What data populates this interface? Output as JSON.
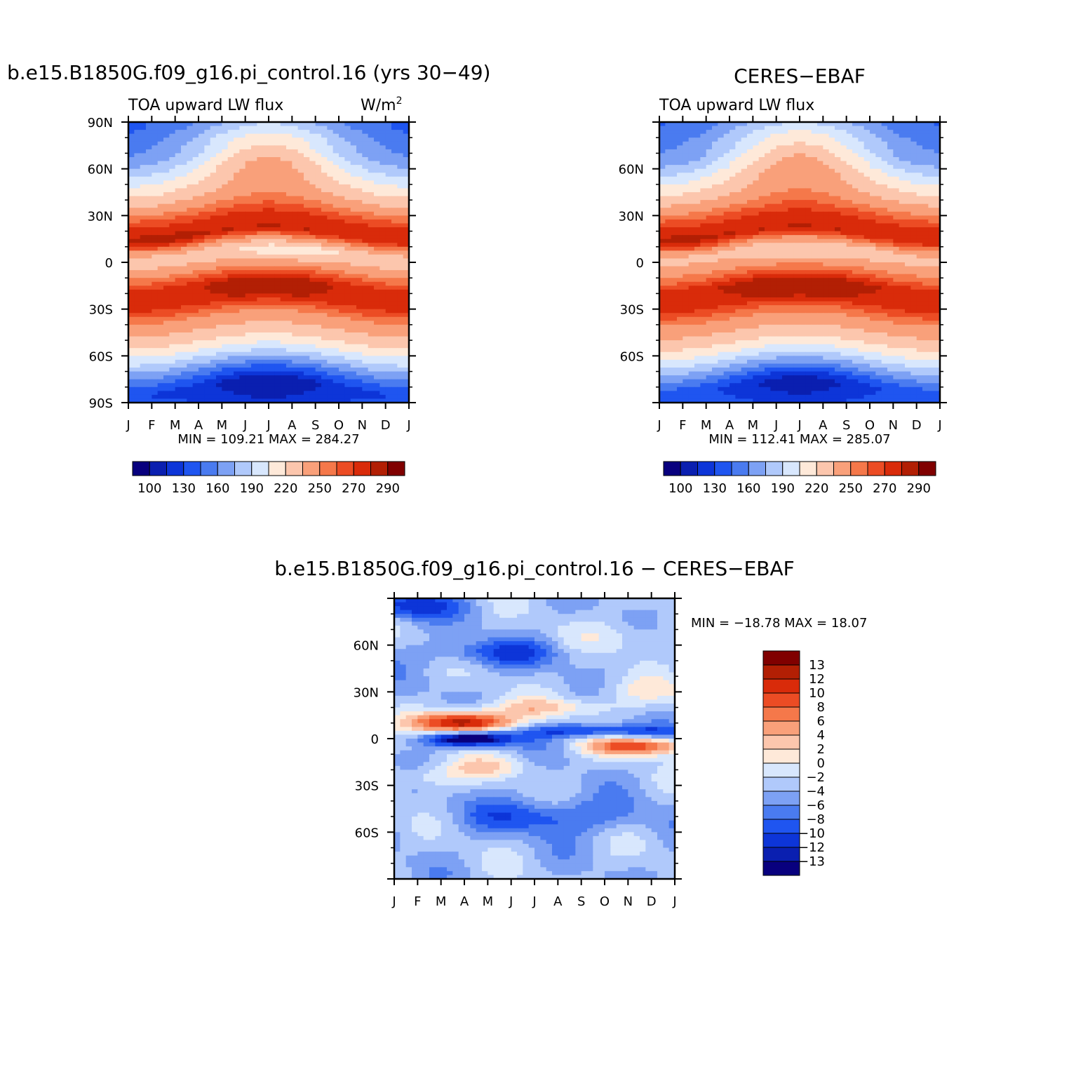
{
  "months": [
    "J",
    "F",
    "M",
    "A",
    "M",
    "J",
    "J",
    "A",
    "S",
    "O",
    "N",
    "D",
    "J"
  ],
  "chart_data": [
    {
      "type": "heatmap",
      "title": "b.e15.B1850G.f09_g16.pi_control.16 (yrs 30−49)",
      "subtitle_left": "TOA upward LW flux",
      "units": "W/m",
      "units_sup": "2",
      "ylim": [
        -90,
        90
      ],
      "y_ticks": [
        "90N",
        "60N",
        "30N",
        "0",
        "30S",
        "60S",
        "90S"
      ],
      "stats": "MIN  =  109.21  MAX  =  284.27",
      "min": 109.21,
      "max": 284.27,
      "levels": [
        100,
        115,
        130,
        145,
        160,
        175,
        190,
        205,
        220,
        235,
        250,
        260,
        270,
        280,
        290
      ],
      "colorbar_labels": [
        "100",
        "130",
        "160",
        "190",
        "220",
        "250",
        "270",
        "290"
      ],
      "anchors": [
        [
          -90,
          135
        ],
        [
          -80,
          130
        ],
        [
          -60,
          195
        ],
        [
          -50,
          222
        ],
        [
          -35,
          250
        ],
        [
          -25,
          275
        ],
        [
          -15,
          275
        ],
        [
          -8,
          255
        ],
        [
          0,
          235
        ],
        [
          6,
          225
        ],
        [
          10,
          240
        ],
        [
          18,
          280
        ],
        [
          28,
          268
        ],
        [
          40,
          235
        ],
        [
          55,
          200
        ],
        [
          70,
          160
        ],
        [
          90,
          140
        ]
      ],
      "features": [
        {
          "lat": -15,
          "month": 6,
          "dlat": 6,
          "dmon": 2.2,
          "amp": 12
        },
        {
          "lat": 12,
          "month": 1.8,
          "dlat": 5,
          "dmon": 1.2,
          "amp": 10
        },
        {
          "lat": 6,
          "month": 6.5,
          "dlat": 4,
          "dmon": 1.8,
          "amp": -15
        },
        {
          "lat": 75,
          "month": 6,
          "dlat": 18,
          "dmon": 2.5,
          "amp": 60
        },
        {
          "lat": -78,
          "month": 6,
          "dlat": 10,
          "dmon": 2.0,
          "amp": -30
        }
      ]
    },
    {
      "type": "heatmap",
      "title": "CERES−EBAF",
      "subtitle_left": "TOA upward LW flux",
      "ylim": [
        -90,
        90
      ],
      "y_ticks": [
        "",
        "60N",
        "30N",
        "0",
        "30S",
        "60S",
        ""
      ],
      "stats": "MIN  =  112.41  MAX  =  285.07",
      "min": 112.41,
      "max": 285.07,
      "levels": [
        100,
        115,
        130,
        145,
        160,
        175,
        190,
        205,
        220,
        235,
        250,
        260,
        270,
        280,
        290
      ],
      "colorbar_labels": [
        "100",
        "130",
        "160",
        "190",
        "220",
        "250",
        "270",
        "290"
      ],
      "anchors": [
        [
          -90,
          140
        ],
        [
          -80,
          135
        ],
        [
          -60,
          200
        ],
        [
          -50,
          225
        ],
        [
          -35,
          252
        ],
        [
          -25,
          276
        ],
        [
          -15,
          276
        ],
        [
          -8,
          256
        ],
        [
          0,
          240
        ],
        [
          6,
          228
        ],
        [
          10,
          242
        ],
        [
          18,
          280
        ],
        [
          28,
          268
        ],
        [
          40,
          237
        ],
        [
          55,
          202
        ],
        [
          70,
          162
        ],
        [
          90,
          142
        ]
      ],
      "features": [
        {
          "lat": -15,
          "month": 6,
          "dlat": 6,
          "dmon": 2.4,
          "amp": 12
        },
        {
          "lat": 12,
          "month": 1.5,
          "dlat": 5,
          "dmon": 1.0,
          "amp": 8
        },
        {
          "lat": 6,
          "month": 6.5,
          "dlat": 4,
          "dmon": 2.0,
          "amp": -12
        },
        {
          "lat": 75,
          "month": 6,
          "dlat": 18,
          "dmon": 2.5,
          "amp": 60
        },
        {
          "lat": -78,
          "month": 6,
          "dlat": 10,
          "dmon": 2.0,
          "amp": -30
        }
      ]
    },
    {
      "type": "heatmap",
      "title": "b.e15.B1850G.f09_g16.pi_control.16  −  CERES−EBAF",
      "ylim": [
        -90,
        90
      ],
      "y_ticks": [
        "",
        "60N",
        "30N",
        "0",
        "30S",
        "60S",
        ""
      ],
      "stats": "MIN  =  −18.78  MAX  =    18.07",
      "min": -18.78,
      "max": 18.07,
      "levels": [
        -13,
        -12,
        -10,
        -8,
        -6,
        -4,
        -2,
        0,
        2,
        4,
        6,
        8,
        10,
        12,
        13
      ],
      "colorbar_labels": [
        "13",
        "12",
        "10",
        "8",
        "6",
        "4",
        "2",
        "0",
        "−2",
        "−4",
        "−6",
        "−8",
        "−10",
        "−12",
        "−13"
      ],
      "base": -3.5,
      "features": [
        {
          "lat": 10,
          "month": 3,
          "dlat": 5,
          "dmon": 1.4,
          "amp": 19
        },
        {
          "lat": 0,
          "month": 3.2,
          "dlat": 3.5,
          "dmon": 1.4,
          "amp": -15
        },
        {
          "lat": 5,
          "month": 8.5,
          "dlat": 3,
          "dmon": 2.5,
          "amp": -8
        },
        {
          "lat": -5,
          "month": 10.5,
          "dlat": 4,
          "dmon": 1.5,
          "amp": 13
        },
        {
          "lat": 20,
          "month": 6.5,
          "dlat": 4,
          "dmon": 2.0,
          "amp": 5
        },
        {
          "lat": -18,
          "month": 4,
          "dlat": 5,
          "dmon": 1.5,
          "amp": 4
        },
        {
          "lat": -25,
          "month": 1.5,
          "dlat": 5,
          "dmon": 1.2,
          "amp": 4
        },
        {
          "lat": -50,
          "month": 6.5,
          "dlat": 8,
          "dmon": 2.5,
          "amp": -6
        },
        {
          "lat": 55,
          "month": 4.5,
          "dlat": 6,
          "dmon": 2.0,
          "amp": -6
        },
        {
          "lat": 85,
          "month": 0.5,
          "dlat": 6,
          "dmon": 1.5,
          "amp": -8
        },
        {
          "lat": 65,
          "month": 10,
          "dlat": 8,
          "dmon": 1.5,
          "amp": 3
        },
        {
          "lat": 30,
          "month": 10.5,
          "dlat": 6,
          "dmon": 2.0,
          "amp": 3
        }
      ]
    }
  ],
  "colors": {
    "palette": [
      "#08007e",
      "#0a1fb0",
      "#0d35d8",
      "#1f55f0",
      "#4a7bf0",
      "#7da1f4",
      "#b0c9fb",
      "#d8e7fd",
      "#fee9d9",
      "#fcc6ad",
      "#f9a07a",
      "#f5784a",
      "#ec4c24",
      "#d92b0a",
      "#b21f04",
      "#800000"
    ]
  }
}
